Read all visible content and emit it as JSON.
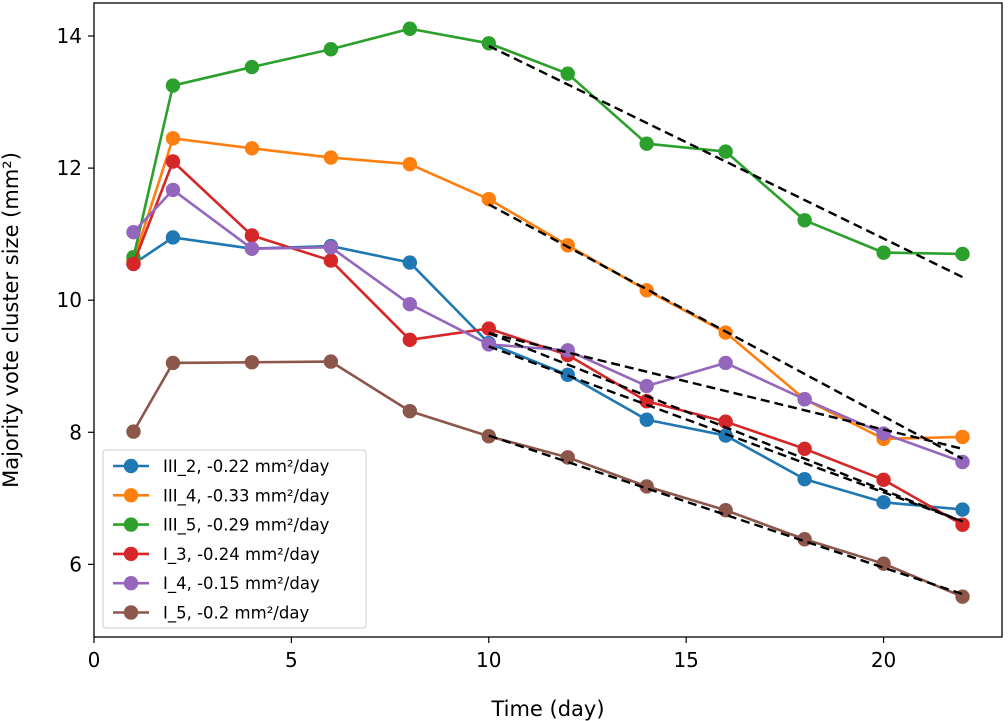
{
  "chart_data": {
    "type": "line",
    "title": "",
    "xlabel": "Time (day)",
    "ylabel": "Majority vote cluster size (mm²)",
    "xlim": [
      0,
      23
    ],
    "ylim": [
      4.9,
      14.5
    ],
    "xticks": [
      0,
      5,
      10,
      15,
      20
    ],
    "yticks": [
      6,
      8,
      10,
      12,
      14
    ],
    "grid": false,
    "legend_position": "lower-left",
    "x": [
      1,
      2,
      4,
      6,
      8,
      10,
      12,
      14,
      16,
      18,
      20,
      22
    ],
    "series": [
      {
        "name": "III_2, -0.22 mm²/day",
        "color": "#1f77b4",
        "values": [
          10.55,
          10.95,
          10.78,
          10.82,
          10.57,
          9.35,
          8.87,
          8.19,
          7.95,
          7.29,
          6.94,
          6.83
        ],
        "fit": [
          [
            10,
            9.3
          ],
          [
            22,
            6.65
          ]
        ]
      },
      {
        "name": "III_4, -0.33 mm²/day",
        "color": "#ff7f0e",
        "values": [
          10.6,
          12.45,
          12.3,
          12.16,
          12.06,
          11.53,
          10.83,
          10.15,
          9.51,
          8.5,
          7.9,
          7.93
        ],
        "fit": [
          [
            10,
            11.45
          ],
          [
            22,
            7.6
          ]
        ]
      },
      {
        "name": "III_5, -0.29 mm²/day",
        "color": "#2ca02c",
        "values": [
          10.65,
          13.25,
          13.53,
          13.8,
          14.11,
          13.89,
          13.43,
          12.37,
          12.25,
          11.21,
          10.72,
          10.7
        ],
        "fit": [
          [
            10,
            13.85
          ],
          [
            22,
            10.35
          ]
        ]
      },
      {
        "name": "I_3, -0.24 mm²/day",
        "color": "#d62728",
        "values": [
          10.55,
          12.1,
          10.98,
          10.6,
          9.4,
          9.57,
          9.17,
          8.47,
          8.16,
          7.75,
          7.28,
          6.6
        ],
        "fit": [
          [
            10,
            9.5
          ],
          [
            22,
            6.65
          ]
        ]
      },
      {
        "name": "I_4, -0.15 mm²/day",
        "color": "#9467bd",
        "values": [
          11.03,
          11.67,
          10.78,
          10.8,
          9.94,
          9.33,
          9.24,
          8.7,
          9.05,
          8.5,
          7.98,
          7.55
        ],
        "fit": [
          [
            10,
            9.5
          ],
          [
            22,
            7.75
          ]
        ]
      },
      {
        "name": "I_5, -0.2 mm²/day",
        "color": "#8c564b",
        "values": [
          8.01,
          9.05,
          9.06,
          9.07,
          8.32,
          7.94,
          7.62,
          7.18,
          6.82,
          6.38,
          6.01,
          5.51
        ],
        "fit": [
          [
            10,
            7.95
          ],
          [
            22,
            5.55
          ]
        ]
      }
    ]
  }
}
